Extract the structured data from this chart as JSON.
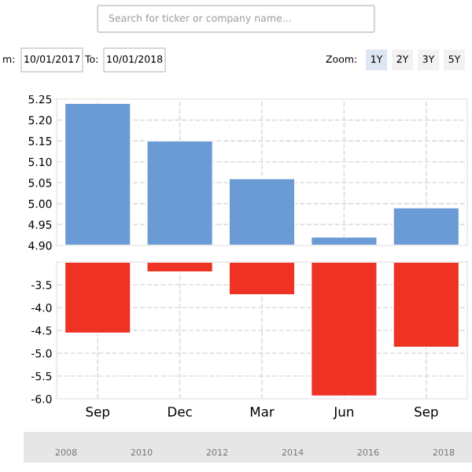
{
  "chart_data": [
    {
      "type": "bar",
      "categories": [
        null,
        null,
        null,
        null,
        null
      ],
      "values": [
        5.24,
        5.15,
        5.06,
        4.92,
        4.99
      ],
      "color": "#6a9bd4",
      "ylim": [
        4.9,
        5.25
      ],
      "yticks": [
        {
          "value": 4.9,
          "label": "4.90"
        },
        {
          "value": 4.95,
          "label": "4.95"
        },
        {
          "value": 5.0,
          "label": "5.00"
        },
        {
          "value": 5.05,
          "label": "5.05"
        },
        {
          "value": 5.1,
          "label": "5.10"
        },
        {
          "value": 5.15,
          "label": "5.15"
        },
        {
          "value": 5.2,
          "label": "5.20"
        },
        {
          "value": 5.25,
          "label": "5.25"
        }
      ],
      "grid": true,
      "tick_labels": "y",
      "annotations": [
        "Search for ticker or company name...",
        "m:",
        "10/01/2017",
        "To:",
        "10/01/2018",
        "Zoom:",
        "1Y",
        "2Y",
        "3Y",
        "5Y",
        "2008",
        "2010",
        "2012",
        "2014",
        "2016",
        "2018"
      ]
    },
    {
      "type": "bar",
      "categories": [
        "Sep",
        "Dec",
        "Mar",
        "Jun",
        "Sep"
      ],
      "values": [
        -4.56,
        -3.22,
        -3.72,
        -5.94,
        -4.87
      ],
      "color": "#ee3224",
      "ylim": [
        -6.0,
        -3.0
      ],
      "yticks": [
        {
          "value": -3.5,
          "label": "-3.5"
        },
        {
          "value": -4.0,
          "label": "-4.0"
        },
        {
          "value": -4.5,
          "label": "-4.5"
        },
        {
          "value": -5.0,
          "label": "-5.0"
        },
        {
          "value": -5.5,
          "label": "-5.5"
        },
        {
          "value": -6.0,
          "label": "-6.0"
        }
      ],
      "grid": true
    }
  ]
}
